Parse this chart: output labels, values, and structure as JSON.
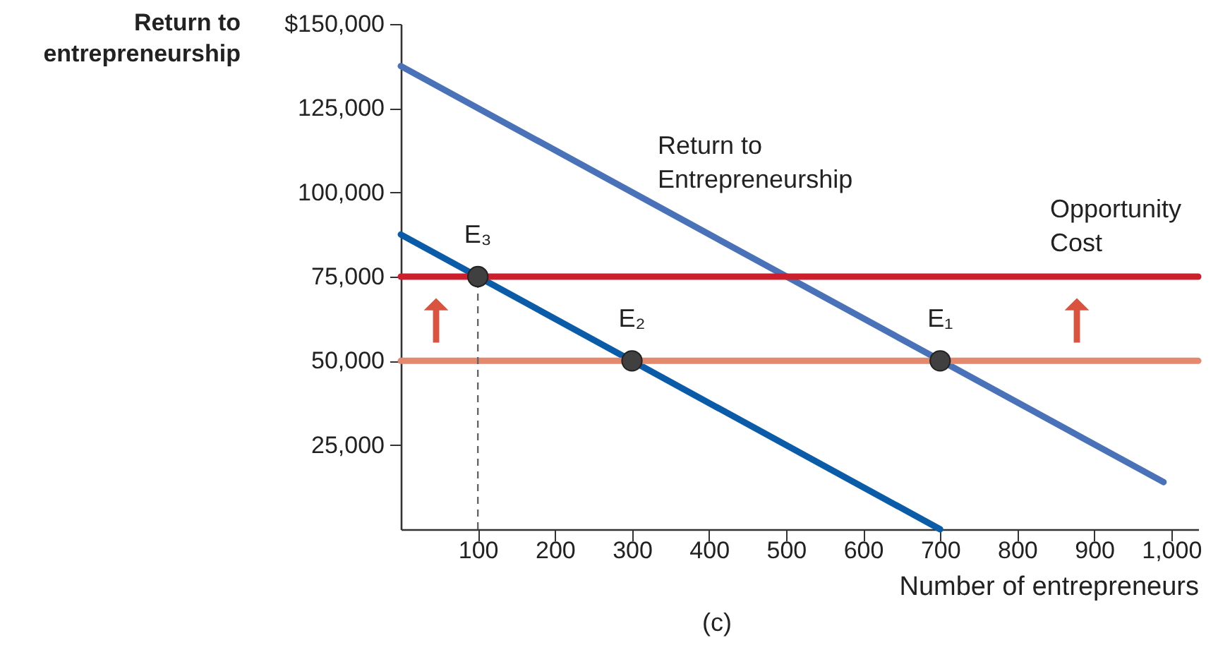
{
  "chart_data": {
    "type": "line",
    "xlabel": "Number of entrepreneurs",
    "ylabel": "Return to entrepreneurship",
    "xlim": [
      0,
      1035
    ],
    "ylim": [
      0,
      150000
    ],
    "xticks": [
      100,
      200,
      300,
      400,
      500,
      600,
      700,
      800,
      900,
      {
        "value": 1000,
        "label": "1,000"
      }
    ],
    "yticks": [
      {
        "value": 25000,
        "label": "25,000"
      },
      {
        "value": 50000,
        "label": "50,000"
      },
      {
        "value": 75000,
        "label": "75,000"
      },
      {
        "value": 100000,
        "label": "100,000"
      },
      {
        "value": 125000,
        "label": "125,000"
      },
      {
        "value": 150000,
        "label": "$150,000"
      }
    ],
    "series": [
      {
        "name": "Return to Entrepreneurship",
        "color": "#4a72b8",
        "x": [
          0,
          990
        ],
        "values": [
          137500,
          14000
        ]
      },
      {
        "color": "#0a5ca8",
        "x": [
          0,
          700
        ],
        "values": [
          87500,
          0
        ]
      },
      {
        "name": "Opportunity Cost",
        "color": "#cc1f2d",
        "x": [
          0,
          1035
        ],
        "values": [
          75000,
          75000
        ]
      },
      {
        "color": "#e38a6e",
        "x": [
          0,
          1035
        ],
        "values": [
          50000,
          50000
        ]
      },
      {
        "color": "#666666",
        "x": [
          100,
          100
        ],
        "values": [
          0,
          75000
        ],
        "line_style": "dashed"
      },
      {
        "type": "scatter",
        "color": "#404040",
        "marker": "circle",
        "x": [
          100,
          300,
          700
        ],
        "values": [
          75000,
          50000,
          50000
        ]
      }
    ],
    "annotations": [
      {
        "text": "E₃",
        "x": 100,
        "y": 75000
      },
      {
        "text": "E₂",
        "x": 300,
        "y": 50000
      },
      {
        "text": "E₁",
        "x": 700,
        "y": 50000
      },
      "(c)"
    ],
    "grid": false
  }
}
